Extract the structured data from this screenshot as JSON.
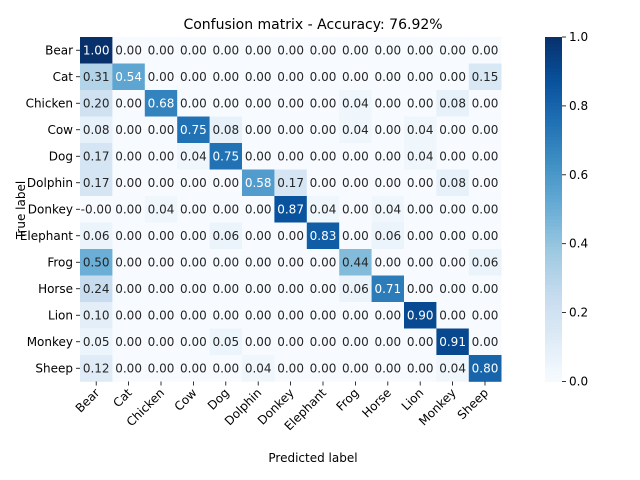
{
  "chart_data": {
    "type": "heatmap",
    "title": "Confusion matrix - Accuracy: 76.92%",
    "xlabel": "Predicted label",
    "ylabel": "True label",
    "row_labels": [
      "Bear",
      "Cat",
      "Chicken",
      "Cow",
      "Dog",
      "Dolphin",
      "Donkey",
      "Elephant",
      "Frog",
      "Horse",
      "Lion",
      "Monkey",
      "Sheep"
    ],
    "col_labels": [
      "Bear",
      "Cat",
      "Chicken",
      "Cow",
      "Dog",
      "Dolphin",
      "Donkey",
      "Elephant",
      "Frog",
      "Horse",
      "Lion",
      "Monkey",
      "Sheep"
    ],
    "values": [
      [
        1.0,
        0.0,
        0.0,
        0.0,
        0.0,
        0.0,
        0.0,
        0.0,
        0.0,
        0.0,
        0.0,
        0.0,
        0.0
      ],
      [
        0.31,
        0.54,
        0.0,
        0.0,
        0.0,
        0.0,
        0.0,
        0.0,
        0.0,
        0.0,
        0.0,
        0.0,
        0.15
      ],
      [
        0.2,
        0.0,
        0.68,
        0.0,
        0.0,
        0.0,
        0.0,
        0.0,
        0.04,
        0.0,
        0.0,
        0.08,
        0.0
      ],
      [
        0.08,
        0.0,
        0.0,
        0.75,
        0.08,
        0.0,
        0.0,
        0.0,
        0.04,
        0.0,
        0.04,
        0.0,
        0.0
      ],
      [
        0.17,
        0.0,
        0.0,
        0.04,
        0.75,
        0.0,
        0.0,
        0.0,
        0.0,
        0.0,
        0.04,
        0.0,
        0.0
      ],
      [
        0.17,
        0.0,
        0.0,
        0.0,
        0.0,
        0.58,
        0.17,
        0.0,
        0.0,
        0.0,
        0.0,
        0.08,
        0.0
      ],
      [
        0.0,
        0.0,
        0.04,
        0.0,
        0.0,
        0.0,
        0.87,
        0.04,
        0.0,
        0.04,
        0.0,
        0.0,
        0.0
      ],
      [
        0.06,
        0.0,
        0.0,
        0.0,
        0.06,
        0.0,
        0.0,
        0.83,
        0.0,
        0.06,
        0.0,
        0.0,
        0.0
      ],
      [
        0.5,
        0.0,
        0.0,
        0.0,
        0.0,
        0.0,
        0.0,
        0.0,
        0.44,
        0.0,
        0.0,
        0.0,
        0.06
      ],
      [
        0.24,
        0.0,
        0.0,
        0.0,
        0.0,
        0.0,
        0.0,
        0.0,
        0.06,
        0.71,
        0.0,
        0.0,
        0.0
      ],
      [
        0.1,
        0.0,
        0.0,
        0.0,
        0.0,
        0.0,
        0.0,
        0.0,
        0.0,
        0.0,
        0.9,
        0.0,
        0.0
      ],
      [
        0.05,
        0.0,
        0.0,
        0.0,
        0.05,
        0.0,
        0.0,
        0.0,
        0.0,
        0.0,
        0.0,
        0.91,
        0.0
      ],
      [
        0.12,
        0.0,
        0.0,
        0.0,
        0.0,
        0.04,
        0.0,
        0.0,
        0.0,
        0.0,
        0.0,
        0.04,
        0.8
      ]
    ],
    "cell_labels": [
      [
        "1.00",
        "0.00",
        "0.00",
        "0.00",
        "0.00",
        "0.00",
        "0.00",
        "0.00",
        "0.00",
        "0.00",
        "0.00",
        "0.00",
        "0.00"
      ],
      [
        "0.31",
        "0.54",
        "0.00",
        "0.00",
        "0.00",
        "0.00",
        "0.00",
        "0.00",
        "0.00",
        "0.00",
        "0.00",
        "0.00",
        "0.15"
      ],
      [
        "0.20",
        "0.00",
        "0.68",
        "0.00",
        "0.00",
        "0.00",
        "0.00",
        "0.00",
        "0.04",
        "0.00",
        "0.00",
        "0.08",
        "0.00"
      ],
      [
        "0.08",
        "0.00",
        "0.00",
        "0.75",
        "0.08",
        "0.00",
        "0.00",
        "0.00",
        "0.04",
        "0.00",
        "0.04",
        "0.00",
        "0.00"
      ],
      [
        "0.17",
        "0.00",
        "0.00",
        "0.04",
        "0.75",
        "0.00",
        "0.00",
        "0.00",
        "0.00",
        "0.00",
        "0.04",
        "0.00",
        "0.00"
      ],
      [
        "0.17",
        "0.00",
        "0.00",
        "0.00",
        "0.00",
        "0.58",
        "0.17",
        "0.00",
        "0.00",
        "0.00",
        "0.00",
        "0.08",
        "0.00"
      ],
      [
        "-0.00",
        "0.00",
        "0.04",
        "0.00",
        "0.00",
        "0.00",
        "0.87",
        "0.04",
        "0.00",
        "0.04",
        "0.00",
        "0.00",
        "0.00"
      ],
      [
        "0.06",
        "0.00",
        "0.00",
        "0.00",
        "0.06",
        "0.00",
        "0.00",
        "0.83",
        "0.00",
        "0.06",
        "0.00",
        "0.00",
        "0.00"
      ],
      [
        "0.50",
        "0.00",
        "0.00",
        "0.00",
        "0.00",
        "0.00",
        "0.00",
        "0.00",
        "0.44",
        "0.00",
        "0.00",
        "0.00",
        "0.06"
      ],
      [
        "0.24",
        "0.00",
        "0.00",
        "0.00",
        "0.00",
        "0.00",
        "0.00",
        "0.00",
        "0.06",
        "0.71",
        "0.00",
        "0.00",
        "0.00"
      ],
      [
        "0.10",
        "0.00",
        "0.00",
        "0.00",
        "0.00",
        "0.00",
        "0.00",
        "0.00",
        "0.00",
        "0.00",
        "0.90",
        "0.00",
        "0.00"
      ],
      [
        "0.05",
        "0.00",
        "0.00",
        "0.00",
        "0.05",
        "0.00",
        "0.00",
        "0.00",
        "0.00",
        "0.00",
        "0.00",
        "0.91",
        "0.00"
      ],
      [
        "0.12",
        "0.00",
        "0.00",
        "0.00",
        "0.00",
        "0.04",
        "0.00",
        "0.00",
        "0.00",
        "0.00",
        "0.00",
        "0.04",
        "0.80"
      ]
    ],
    "colorbar": {
      "range": [
        0.0,
        1.0
      ],
      "ticks": [
        "0.0",
        "0.2",
        "0.4",
        "0.6",
        "0.8",
        "1.0"
      ],
      "colormap": "Blues"
    }
  }
}
